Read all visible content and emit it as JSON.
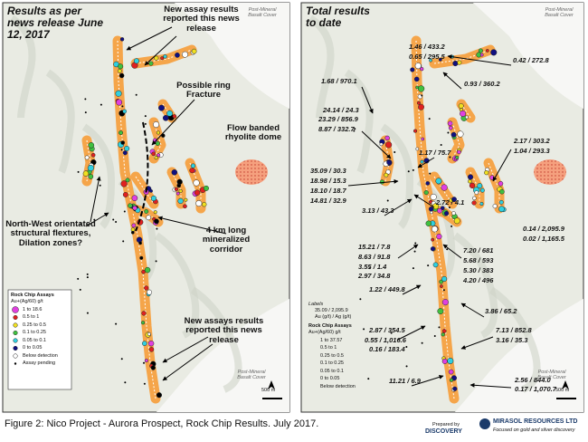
{
  "left_panel": {
    "title": "Results as per news release June 12, 2017",
    "annotations": [
      "New assay results reported this news release",
      "Possible ring Fracture",
      "Flow banded rhyolite dome",
      "North-West orientated structural flextures, Dilation zones?",
      "4 km long mineralized corridor",
      "New assays results reported this news release"
    ],
    "basalt_labels": [
      "Post-Mineral Basalt Cover",
      "Post-Mineral Basalt Cover"
    ],
    "legend": {
      "title": "Rock Chip Assays",
      "subtitle": "Au+(Ag/60) g/t",
      "items": [
        "1 to 18.6",
        "0.5 to 1",
        "0.25 to 0.5",
        "0.1 to 0.25",
        "0.05 to 0.1",
        "0 to 0.05",
        "Below detection",
        "Assay pending"
      ]
    },
    "scale": "500 m"
  },
  "right_panel": {
    "title": "Total results to date",
    "labels": [
      "1.46 / 433.2",
      "0.65 / 295.5",
      "0.42 / 272.8",
      "0.93 / 360.2",
      "1.68 / 970.1",
      "24.14 / 24.3",
      "23.29 / 856.9",
      "8.87 / 332.7",
      "1.17 / 75.7",
      "2.17 / 303.2",
      "1.04 / 293.3",
      "35.09 / 30.3",
      "18.98 / 15.3",
      "18.10 / 18.7",
      "14.81 / 32.9",
      "2.72 / 4.1",
      "3.13 / 43.3",
      "0.14 / 2,095.9",
      "0.02 / 1,165.5",
      "15.21 / 7.8",
      "8.63 / 91.8",
      "3.55 / 1.4",
      "2.97 / 34.8",
      "7.20 / 681",
      "5.68 / 593",
      "5.30 / 383",
      "4.20 / 496",
      "1.22 / 449.8",
      "3.86 / 65.2",
      "2.87 / 354.5",
      "0.55 / 1,016.6",
      "0.16 / 183.4",
      "7.13 / 852.8",
      "3.16 / 35.3",
      "2.56 / 844.0",
      "0.17 / 1,070.7",
      "11.21 / 6.9"
    ],
    "basalt_labels": [
      "Post-Mineral Basalt Cover",
      "Post-Mineral Basalt Cover"
    ],
    "legend": {
      "labels_title": "Labels",
      "labels_example": "35.09 / 2,095.9",
      "labels_units": "Au (g/t) / Ag (g/t)",
      "title": "Rock Chip Assays",
      "subtitle": "Au+(Ag/60) g/t",
      "items": [
        "1 to 37.57",
        "0.5 to 1",
        "0.25 to 0.5",
        "0.1 to 0.25",
        "0.05 to 0.1",
        "0 to 0.05",
        "Below detection"
      ]
    },
    "scale": "500 m"
  },
  "caption": "Figure 2: Nico Project - Aurora Prospect, Rock Chip Results. July 2017.",
  "logos": {
    "prepared_by": "Prepared by",
    "discovery": "DISCOVERY",
    "company": "MIRASOL RESOURCES LTD",
    "tagline": "Focused on gold and silver discovery"
  }
}
